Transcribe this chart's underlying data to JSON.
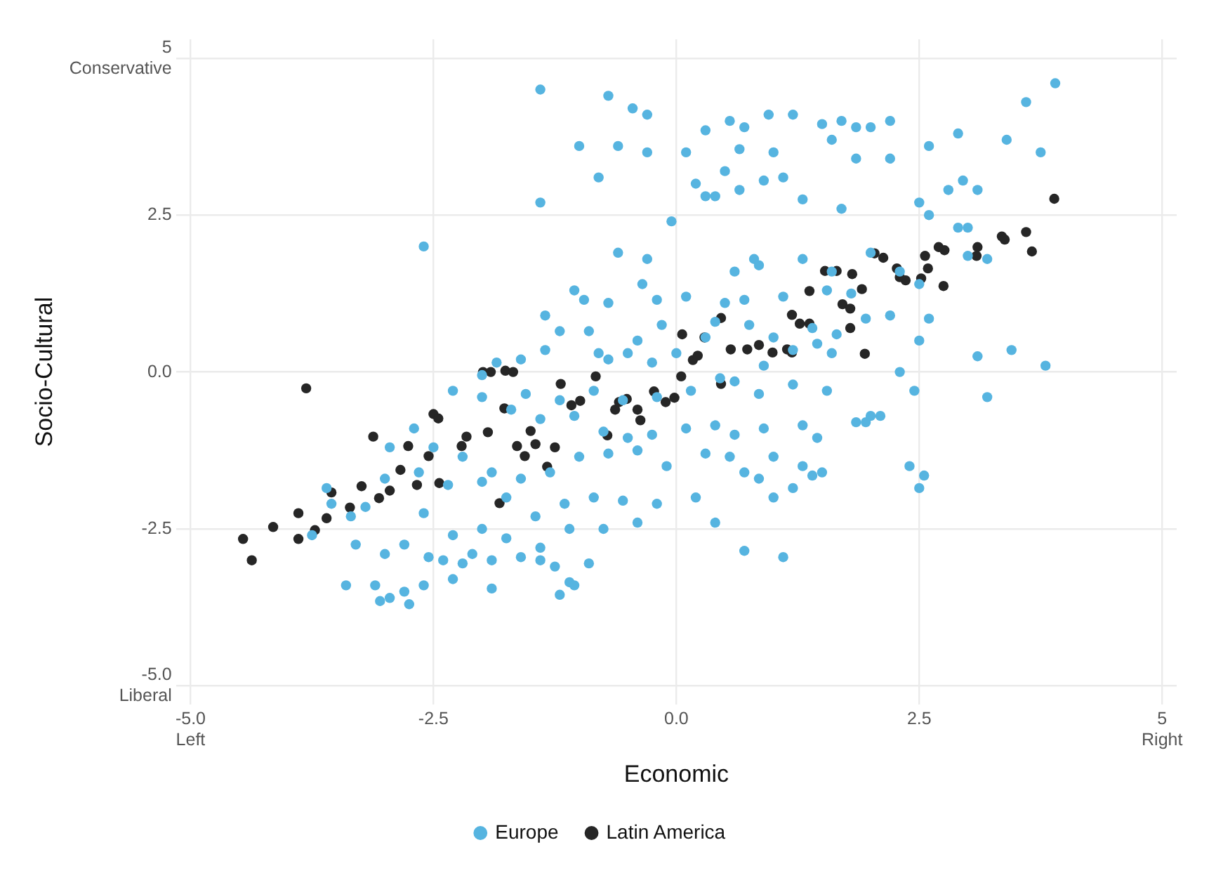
{
  "chart_data": {
    "type": "scatter",
    "xlabel": "Economic",
    "ylabel": "Socio-Cultural",
    "xlim": [
      -5.15,
      5.15
    ],
    "ylim": [
      -5.3,
      5.3
    ],
    "xticks": [
      {
        "value": -5,
        "label": "-5.0\nLeft"
      },
      -2.5,
      {
        "value": 0,
        "label": "0.0"
      },
      2.5,
      {
        "value": 5,
        "label": "5\nRight"
      }
    ],
    "yticks": [
      {
        "value": -5,
        "label": "-5.0\nLiberal"
      },
      -2.5,
      {
        "value": 0,
        "label": "0.0"
      },
      2.5,
      {
        "value": 5,
        "label": "5\nConservative"
      }
    ],
    "grid": true,
    "legend": "bottom",
    "marker": "circle",
    "series": [
      {
        "name": "Europe",
        "color": "#56b4e0",
        "x": [
          -1.4,
          -0.7,
          -0.45,
          -0.3,
          0.3,
          0.55,
          0.7,
          0.95,
          1.2,
          1.5,
          1.7,
          1.85,
          2.0,
          2.2,
          -1.0,
          -0.6,
          -0.3,
          0.1,
          0.65,
          1.0,
          1.6,
          -0.8,
          0.2,
          0.5,
          0.65,
          0.9,
          -1.4,
          0.3,
          0.4,
          1.1,
          -0.05,
          1.3,
          2.5,
          2.6,
          2.8,
          2.9,
          3.0,
          3.2,
          3.1,
          3.6,
          3.9,
          3.4,
          2.9,
          3.75,
          2.2,
          1.85,
          2.6,
          2.95,
          1.7,
          -2.6,
          -0.6,
          -0.3,
          0.6,
          0.8,
          0.85,
          1.3,
          1.6,
          2.0,
          2.3,
          2.5,
          -1.05,
          -0.95,
          -0.7,
          -0.35,
          -0.2,
          0.1,
          0.5,
          0.7,
          1.1,
          1.55,
          1.8,
          2.2,
          3.0,
          2.6,
          -1.35,
          -1.2,
          -0.9,
          -0.4,
          -0.15,
          0.3,
          0.4,
          0.75,
          1.0,
          1.4,
          1.45,
          1.65,
          1.95,
          2.5,
          -1.6,
          -1.35,
          -0.8,
          -0.7,
          -0.5,
          -0.25,
          0.0,
          0.6,
          0.9,
          1.2,
          1.6,
          3.1,
          3.45,
          3.8,
          2.3,
          2.45,
          3.2,
          -1.85,
          -2.0,
          -1.55,
          -1.2,
          -0.85,
          -0.55,
          -0.2,
          0.15,
          0.45,
          0.85,
          1.2,
          1.55,
          2.0,
          2.1,
          1.85,
          -2.3,
          -2.0,
          -1.7,
          -1.4,
          -1.05,
          -0.75,
          -0.5,
          -0.25,
          0.1,
          0.4,
          0.6,
          0.9,
          1.3,
          1.45,
          1.95,
          -2.7,
          -2.5,
          -2.2,
          -1.9,
          -1.6,
          -1.3,
          -1.0,
          -0.7,
          -0.4,
          -0.1,
          0.3,
          0.55,
          1.0,
          1.3,
          1.5,
          2.4,
          2.55,
          2.5,
          -2.95,
          -2.65,
          -2.35,
          -2.0,
          -1.75,
          -1.45,
          -1.15,
          -0.85,
          -0.55,
          -0.2,
          0.2,
          0.4,
          0.7,
          0.85,
          1.0,
          1.2,
          1.4,
          -3.0,
          -3.2,
          -2.6,
          -2.3,
          -2.0,
          -1.75,
          -1.4,
          -1.1,
          -0.75,
          -0.4,
          0.7,
          1.1,
          -3.35,
          -3.3,
          -3.0,
          -2.8,
          -2.55,
          -2.2,
          -2.1,
          -1.9,
          -1.6,
          -1.4,
          -1.1,
          -0.9,
          -3.6,
          -3.55,
          -3.75,
          -3.4,
          -3.1,
          -2.95,
          -2.8,
          -2.6,
          -2.3,
          -1.9,
          -1.2,
          -1.05,
          -3.05,
          -2.75,
          -2.4,
          -1.25
        ],
        "values": [
          4.5,
          4.4,
          4.2,
          4.1,
          3.85,
          4.0,
          3.9,
          4.1,
          4.1,
          3.95,
          4.0,
          3.9,
          3.9,
          4.0,
          3.6,
          3.6,
          3.5,
          3.5,
          3.55,
          3.5,
          3.7,
          3.1,
          3.0,
          3.2,
          2.9,
          3.05,
          2.7,
          2.8,
          2.8,
          3.1,
          2.4,
          2.75,
          2.7,
          2.5,
          2.9,
          2.3,
          2.3,
          1.8,
          2.9,
          4.3,
          4.6,
          3.7,
          3.8,
          3.5,
          3.4,
          3.4,
          3.6,
          3.05,
          2.6,
          2.0,
          1.9,
          1.8,
          1.6,
          1.8,
          1.7,
          1.8,
          1.6,
          1.9,
          1.6,
          1.4,
          1.3,
          1.15,
          1.1,
          1.4,
          1.15,
          1.2,
          1.1,
          1.15,
          1.2,
          1.3,
          1.25,
          0.9,
          1.85,
          0.85,
          0.9,
          0.65,
          0.65,
          0.5,
          0.75,
          0.55,
          0.8,
          0.75,
          0.55,
          0.7,
          0.45,
          0.6,
          0.85,
          0.5,
          0.2,
          0.35,
          0.3,
          0.2,
          0.3,
          0.15,
          0.3,
          -0.15,
          0.1,
          0.35,
          0.3,
          0.25,
          0.35,
          0.1,
          0.0,
          -0.3,
          -0.4,
          0.15,
          -0.05,
          -0.35,
          -0.45,
          -0.3,
          -0.45,
          -0.4,
          -0.3,
          -0.1,
          -0.35,
          -0.2,
          -0.3,
          -0.7,
          -0.7,
          -0.8,
          -0.3,
          -0.4,
          -0.6,
          -0.75,
          -0.7,
          -0.95,
          -1.05,
          -1.0,
          -0.9,
          -0.85,
          -1.0,
          -0.9,
          -0.85,
          -1.05,
          -0.8,
          -0.9,
          -1.2,
          -1.35,
          -1.6,
          -1.7,
          -1.6,
          -1.35,
          -1.3,
          -1.25,
          -1.5,
          -1.3,
          -1.35,
          -1.35,
          -1.5,
          -1.6,
          -1.5,
          -1.65,
          -1.85,
          -1.2,
          -1.6,
          -1.8,
          -1.75,
          -2.0,
          -2.3,
          -2.1,
          -2.0,
          -2.05,
          -2.1,
          -2.0,
          -2.4,
          -1.6,
          -1.7,
          -2.0,
          -1.85,
          -1.65,
          -1.7,
          -2.15,
          -2.25,
          -2.6,
          -2.5,
          -2.65,
          -2.8,
          -2.5,
          -2.5,
          -2.4,
          -2.85,
          -2.95,
          -2.3,
          -2.75,
          -2.9,
          -2.75,
          -2.95,
          -3.05,
          -2.9,
          -3.0,
          -2.95,
          -3.0,
          -3.35,
          -3.05,
          -1.85,
          -2.1,
          -2.6,
          -3.4,
          -3.4,
          -3.6,
          -3.5,
          -3.4,
          -3.3,
          -3.45,
          -3.55,
          -3.4,
          -3.65,
          -3.7,
          -3.0,
          -3.1
        ]
      },
      {
        "name": "Latin America",
        "color": "#262626",
        "x": [
          -4.46,
          -4.37,
          -4.15,
          -3.89,
          -3.89,
          -3.72,
          -3.6,
          -3.55,
          -3.36,
          -3.24,
          -3.12,
          -3.06,
          -2.95,
          -2.84,
          -2.76,
          -2.67,
          -2.55,
          -2.5,
          -2.45,
          -2.44,
          -2.21,
          -2.16,
          -1.94,
          -1.77,
          -1.82,
          -1.64,
          -1.56,
          -1.5,
          -1.45,
          -1.33,
          -1.25,
          -1.19,
          -3.81,
          -1.99,
          -1.91,
          -1.76,
          -1.68,
          -1.08,
          -0.99,
          -0.83,
          -0.71,
          -0.63,
          -0.59,
          -0.51,
          -0.4,
          -0.37,
          -0.23,
          -0.11,
          -0.02,
          0.05,
          0.06,
          0.17,
          0.22,
          0.29,
          0.46,
          0.46,
          0.56,
          0.73,
          0.85,
          0.99,
          1.14,
          1.19,
          1.19,
          1.27,
          1.37,
          1.37,
          1.53,
          1.65,
          1.71,
          1.79,
          1.79,
          1.94,
          1.81,
          1.91,
          2.04,
          2.13,
          2.27,
          2.3,
          2.36,
          2.52,
          2.56,
          2.59,
          2.7,
          2.76,
          2.75,
          3.09,
          3.1,
          3.35,
          3.38,
          3.6,
          3.66,
          3.89
        ],
        "values": [
          -2.66,
          -3.0,
          -2.47,
          -2.25,
          -2.66,
          -2.52,
          -2.33,
          -1.92,
          -2.16,
          -1.82,
          -1.03,
          -2.01,
          -1.89,
          -1.56,
          -1.18,
          -1.8,
          -1.34,
          -0.67,
          -0.74,
          -1.77,
          -1.18,
          -1.03,
          -0.96,
          -0.58,
          -2.09,
          -1.18,
          -1.34,
          -0.94,
          -1.15,
          -1.51,
          -1.2,
          -0.19,
          -0.26,
          0.0,
          0.0,
          0.02,
          0.0,
          -0.53,
          -0.46,
          -0.07,
          -1.01,
          -0.6,
          -0.48,
          -0.43,
          -0.6,
          -0.77,
          -0.31,
          -0.48,
          -0.41,
          -0.07,
          0.6,
          0.19,
          0.26,
          0.55,
          0.86,
          -0.19,
          0.36,
          0.36,
          0.43,
          0.31,
          0.36,
          0.31,
          0.91,
          0.77,
          0.77,
          1.29,
          1.61,
          1.61,
          1.08,
          1.01,
          0.7,
          0.29,
          1.56,
          1.32,
          1.89,
          1.82,
          1.65,
          1.51,
          1.46,
          1.49,
          1.85,
          1.65,
          1.99,
          1.94,
          1.37,
          1.85,
          1.99,
          2.16,
          2.11,
          2.23,
          1.92,
          2.76
        ]
      }
    ]
  }
}
